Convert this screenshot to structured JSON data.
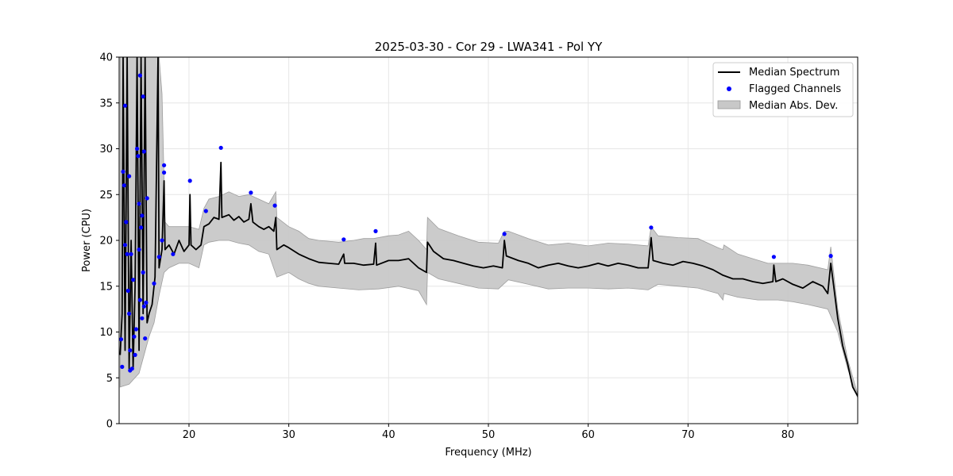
{
  "chart_data": {
    "type": "line",
    "title": "2025-03-30 - Cor 29 - LWA341 - Pol YY",
    "xlabel": "Frequency (MHz)",
    "ylabel": "Power (CPU)",
    "xlim": [
      13,
      87
    ],
    "ylim": [
      0,
      40
    ],
    "xticks": [
      20,
      30,
      40,
      50,
      60,
      70,
      80
    ],
    "yticks": [
      0,
      5,
      10,
      15,
      20,
      25,
      30,
      35,
      40
    ],
    "grid": true,
    "legend_position": "top-right",
    "series": [
      {
        "name": "Median Spectrum",
        "kind": "line",
        "color": "#000000",
        "points": [
          [
            13.1,
            7.5
          ],
          [
            13.3,
            12
          ],
          [
            13.4,
            40
          ],
          [
            13.6,
            8
          ],
          [
            13.8,
            40
          ],
          [
            14.0,
            6
          ],
          [
            14.2,
            20
          ],
          [
            14.4,
            6
          ],
          [
            14.6,
            15
          ],
          [
            14.8,
            40
          ],
          [
            15.0,
            8
          ],
          [
            15.2,
            40
          ],
          [
            15.4,
            12
          ],
          [
            15.6,
            40
          ],
          [
            15.8,
            11
          ],
          [
            16.0,
            12
          ],
          [
            16.3,
            13
          ],
          [
            16.6,
            16
          ],
          [
            16.9,
            40
          ],
          [
            17.0,
            17
          ],
          [
            17.3,
            19
          ],
          [
            17.5,
            26.5
          ],
          [
            17.6,
            19
          ],
          [
            18.0,
            19.5
          ],
          [
            18.5,
            18.5
          ],
          [
            19.0,
            20
          ],
          [
            19.5,
            18.8
          ],
          [
            20.0,
            19.5
          ],
          [
            20.1,
            25
          ],
          [
            20.2,
            19.5
          ],
          [
            20.7,
            19
          ],
          [
            21.2,
            19.5
          ],
          [
            21.5,
            21.5
          ],
          [
            22.0,
            21.8
          ],
          [
            22.5,
            22.5
          ],
          [
            23.0,
            22.3
          ],
          [
            23.2,
            28.5
          ],
          [
            23.3,
            22.5
          ],
          [
            24.0,
            22.8
          ],
          [
            24.5,
            22.2
          ],
          [
            25.0,
            22.6
          ],
          [
            25.5,
            22.0
          ],
          [
            26.0,
            22.3
          ],
          [
            26.2,
            24
          ],
          [
            26.4,
            22.0
          ],
          [
            27.0,
            21.5
          ],
          [
            27.5,
            21.2
          ],
          [
            28.0,
            21.5
          ],
          [
            28.5,
            21.0
          ],
          [
            28.7,
            22.5
          ],
          [
            28.8,
            19.0
          ],
          [
            29.5,
            19.5
          ],
          [
            30.0,
            19.2
          ],
          [
            31.0,
            18.5
          ],
          [
            32.0,
            18.0
          ],
          [
            33.0,
            17.6
          ],
          [
            34.0,
            17.5
          ],
          [
            35.0,
            17.4
          ],
          [
            35.5,
            18.5
          ],
          [
            35.6,
            17.5
          ],
          [
            36.5,
            17.5
          ],
          [
            37.5,
            17.3
          ],
          [
            38.5,
            17.4
          ],
          [
            38.7,
            19.7
          ],
          [
            38.8,
            17.3
          ],
          [
            40.0,
            17.8
          ],
          [
            41.0,
            17.8
          ],
          [
            42.0,
            18.0
          ],
          [
            43.0,
            17.0
          ],
          [
            43.8,
            16.5
          ],
          [
            43.9,
            19.8
          ],
          [
            44.5,
            18.8
          ],
          [
            45.5,
            18.0
          ],
          [
            46.5,
            17.8
          ],
          [
            47.5,
            17.5
          ],
          [
            48.5,
            17.2
          ],
          [
            49.5,
            17.0
          ],
          [
            50.5,
            17.2
          ],
          [
            51.4,
            17.0
          ],
          [
            51.6,
            20.0
          ],
          [
            51.8,
            18.3
          ],
          [
            53.0,
            17.8
          ],
          [
            54.0,
            17.5
          ],
          [
            55.0,
            17.0
          ],
          [
            56.0,
            17.3
          ],
          [
            57.0,
            17.5
          ],
          [
            58.0,
            17.2
          ],
          [
            59.0,
            17.0
          ],
          [
            60.0,
            17.2
          ],
          [
            61.0,
            17.5
          ],
          [
            62.0,
            17.2
          ],
          [
            63.0,
            17.5
          ],
          [
            64.0,
            17.3
          ],
          [
            65.0,
            17.0
          ],
          [
            66.0,
            17.0
          ],
          [
            66.3,
            20.3
          ],
          [
            66.5,
            17.8
          ],
          [
            67.5,
            17.5
          ],
          [
            68.5,
            17.3
          ],
          [
            69.5,
            17.7
          ],
          [
            70.5,
            17.5
          ],
          [
            71.5,
            17.2
          ],
          [
            72.5,
            16.8
          ],
          [
            73.5,
            16.2
          ],
          [
            74.5,
            15.8
          ],
          [
            75.5,
            15.8
          ],
          [
            76.5,
            15.5
          ],
          [
            77.5,
            15.3
          ],
          [
            78.5,
            15.5
          ],
          [
            78.6,
            17.3
          ],
          [
            78.8,
            15.5
          ],
          [
            79.5,
            15.8
          ],
          [
            80.5,
            15.2
          ],
          [
            81.5,
            14.8
          ],
          [
            82.5,
            15.5
          ],
          [
            83.5,
            15.0
          ],
          [
            84.0,
            14.2
          ],
          [
            84.3,
            17.5
          ],
          [
            84.6,
            15.0
          ],
          [
            85.0,
            11.5
          ],
          [
            85.5,
            8.5
          ],
          [
            86.0,
            6.5
          ],
          [
            86.5,
            4.0
          ],
          [
            87.0,
            3.0
          ]
        ]
      },
      {
        "name": "Flagged Channels",
        "kind": "scatter",
        "color": "#0000ff",
        "points": [
          [
            13.2,
            9.2
          ],
          [
            13.3,
            6.2
          ],
          [
            13.4,
            27.5
          ],
          [
            13.5,
            26
          ],
          [
            13.6,
            34.7
          ],
          [
            13.6,
            19.5
          ],
          [
            13.7,
            22
          ],
          [
            13.8,
            18.5
          ],
          [
            13.9,
            14.5
          ],
          [
            14.0,
            27
          ],
          [
            14.0,
            12
          ],
          [
            14.1,
            8
          ],
          [
            14.1,
            5.8
          ],
          [
            14.2,
            18.5
          ],
          [
            14.3,
            6
          ],
          [
            14.4,
            15.7
          ],
          [
            14.5,
            9.5
          ],
          [
            14.6,
            7.5
          ],
          [
            14.7,
            10.3
          ],
          [
            14.8,
            30
          ],
          [
            14.9,
            29.2
          ],
          [
            15.0,
            24
          ],
          [
            15.0,
            19
          ],
          [
            15.1,
            38
          ],
          [
            15.1,
            13.5
          ],
          [
            15.2,
            21.4
          ],
          [
            15.3,
            22.7
          ],
          [
            15.3,
            11.5
          ],
          [
            15.4,
            35.7
          ],
          [
            15.4,
            16.5
          ],
          [
            15.5,
            29.7
          ],
          [
            15.5,
            12.8
          ],
          [
            15.6,
            9.3
          ],
          [
            15.7,
            13.2
          ],
          [
            15.8,
            24.6
          ],
          [
            16.5,
            15.3
          ],
          [
            17.0,
            18.2
          ],
          [
            17.3,
            20
          ],
          [
            17.5,
            28.2
          ],
          [
            17.5,
            27.4
          ],
          [
            18.4,
            18.5
          ],
          [
            20.1,
            26.5
          ],
          [
            21.7,
            23.2
          ],
          [
            23.2,
            30.1
          ],
          [
            26.2,
            25.2
          ],
          [
            28.6,
            23.8
          ],
          [
            35.5,
            20.1
          ],
          [
            38.7,
            21
          ],
          [
            51.6,
            20.7
          ],
          [
            66.3,
            21.4
          ],
          [
            78.6,
            18.2
          ],
          [
            84.3,
            18.3
          ]
        ]
      },
      {
        "name": "Median Abs. Dev.",
        "kind": "area",
        "color": "#c8c8c8",
        "upper": [
          [
            13.1,
            40
          ],
          [
            17.0,
            40
          ],
          [
            17.3,
            36
          ],
          [
            17.6,
            22
          ],
          [
            18.0,
            21.5
          ],
          [
            19.0,
            21.5
          ],
          [
            20.0,
            21.5
          ],
          [
            21.0,
            21.2
          ],
          [
            21.5,
            23.5
          ],
          [
            22.0,
            24.5
          ],
          [
            23.0,
            24.8
          ],
          [
            24.0,
            25.3
          ],
          [
            25.0,
            24.8
          ],
          [
            26.0,
            25.0
          ],
          [
            27.0,
            24.5
          ],
          [
            28.0,
            24.0
          ],
          [
            28.7,
            25.3
          ],
          [
            28.8,
            22.5
          ],
          [
            30.0,
            21.5
          ],
          [
            31.0,
            21.0
          ],
          [
            32.0,
            20.2
          ],
          [
            33.0,
            20.0
          ],
          [
            35.0,
            19.8
          ],
          [
            36.5,
            20.0
          ],
          [
            37.5,
            20.2
          ],
          [
            38.5,
            20.2
          ],
          [
            40.0,
            20.5
          ],
          [
            41.0,
            20.6
          ],
          [
            42.0,
            21.0
          ],
          [
            43.0,
            20.0
          ],
          [
            43.8,
            19.0
          ],
          [
            43.9,
            22.5
          ],
          [
            45.0,
            21.3
          ],
          [
            47.0,
            20.5
          ],
          [
            49.0,
            19.8
          ],
          [
            51.0,
            19.7
          ],
          [
            51.6,
            21.0
          ],
          [
            52.0,
            21.0
          ],
          [
            54.0,
            20.2
          ],
          [
            56.0,
            19.5
          ],
          [
            58.0,
            19.7
          ],
          [
            60.0,
            19.4
          ],
          [
            62.0,
            19.7
          ],
          [
            64.0,
            19.6
          ],
          [
            66.0,
            19.4
          ],
          [
            66.3,
            21.5
          ],
          [
            67.0,
            20.5
          ],
          [
            69.0,
            20.3
          ],
          [
            71.0,
            20.2
          ],
          [
            73.0,
            19.2
          ],
          [
            73.5,
            19.0
          ],
          [
            73.6,
            19.5
          ],
          [
            75.0,
            18.5
          ],
          [
            76.5,
            18.0
          ],
          [
            78.0,
            17.5
          ],
          [
            79.0,
            17.5
          ],
          [
            80.5,
            17.5
          ],
          [
            82.0,
            17.3
          ],
          [
            84.0,
            16.8
          ],
          [
            84.3,
            19.3
          ],
          [
            85.0,
            12.5
          ],
          [
            86.0,
            7.0
          ],
          [
            87.0,
            3.2
          ]
        ],
        "lower": [
          [
            13.1,
            4.0
          ],
          [
            14.0,
            4.3
          ],
          [
            15.0,
            5.5
          ],
          [
            16.0,
            9.5
          ],
          [
            16.5,
            11.0
          ],
          [
            17.0,
            14.0
          ],
          [
            17.5,
            16.5
          ],
          [
            18.0,
            17.0
          ],
          [
            19.0,
            17.5
          ],
          [
            20.0,
            17.5
          ],
          [
            21.0,
            17.0
          ],
          [
            21.5,
            19.5
          ],
          [
            22.0,
            19.8
          ],
          [
            23.0,
            20.0
          ],
          [
            24.0,
            20.0
          ],
          [
            25.0,
            19.7
          ],
          [
            26.0,
            19.5
          ],
          [
            27.0,
            18.8
          ],
          [
            28.0,
            18.5
          ],
          [
            28.8,
            16.0
          ],
          [
            30.0,
            16.5
          ],
          [
            31.0,
            15.8
          ],
          [
            32.0,
            15.3
          ],
          [
            33.0,
            15.0
          ],
          [
            35.0,
            14.8
          ],
          [
            37.0,
            14.6
          ],
          [
            39.0,
            14.7
          ],
          [
            41.0,
            15.0
          ],
          [
            43.0,
            14.5
          ],
          [
            43.8,
            13.0
          ],
          [
            43.9,
            16.5
          ],
          [
            45.0,
            15.8
          ],
          [
            47.0,
            15.3
          ],
          [
            49.0,
            14.8
          ],
          [
            51.0,
            14.7
          ],
          [
            52.0,
            15.7
          ],
          [
            54.0,
            15.2
          ],
          [
            56.0,
            14.7
          ],
          [
            58.0,
            14.8
          ],
          [
            60.0,
            14.8
          ],
          [
            62.0,
            14.7
          ],
          [
            64.0,
            14.8
          ],
          [
            66.0,
            14.6
          ],
          [
            67.0,
            15.2
          ],
          [
            69.0,
            15.0
          ],
          [
            71.0,
            14.8
          ],
          [
            73.0,
            14.2
          ],
          [
            73.5,
            13.5
          ],
          [
            73.6,
            14.2
          ],
          [
            75.0,
            13.8
          ],
          [
            77.0,
            13.5
          ],
          [
            79.0,
            13.5
          ],
          [
            80.5,
            13.3
          ],
          [
            82.0,
            13.0
          ],
          [
            84.0,
            12.5
          ],
          [
            85.0,
            10.0
          ],
          [
            86.0,
            6.0
          ],
          [
            87.0,
            2.8
          ]
        ]
      }
    ]
  }
}
